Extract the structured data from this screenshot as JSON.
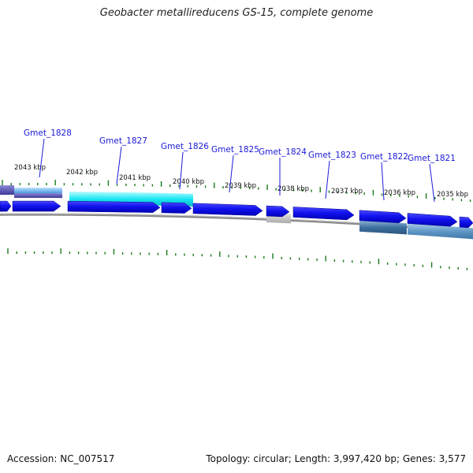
{
  "title": "Geobacter metallireducens GS-15, complete genome",
  "footer": {
    "accession": "Accession: NC_007517",
    "summary": "Topology: circular; Length: 3,997,420 bp; Genes: 3,577"
  },
  "colors": {
    "cds": "#1010e8",
    "tick": "#1a7a1a",
    "backbone": "#8a8a8a",
    "label": "#1a1ad6"
  },
  "gene_labels": [
    "Gmet_1828",
    "Gmet_1827",
    "Gmet_1826",
    "Gmet_1825",
    "Gmet_1824",
    "Gmet_1823",
    "Gmet_1822",
    "Gmet_1821"
  ],
  "scale_labels": [
    "2043 kbp",
    "2042 kbp",
    "2041 kbp",
    "2040 kbp",
    "2039 kbp",
    "2038 kbp",
    "2037 kbp",
    "2036 kbp",
    "2035 kbp"
  ]
}
